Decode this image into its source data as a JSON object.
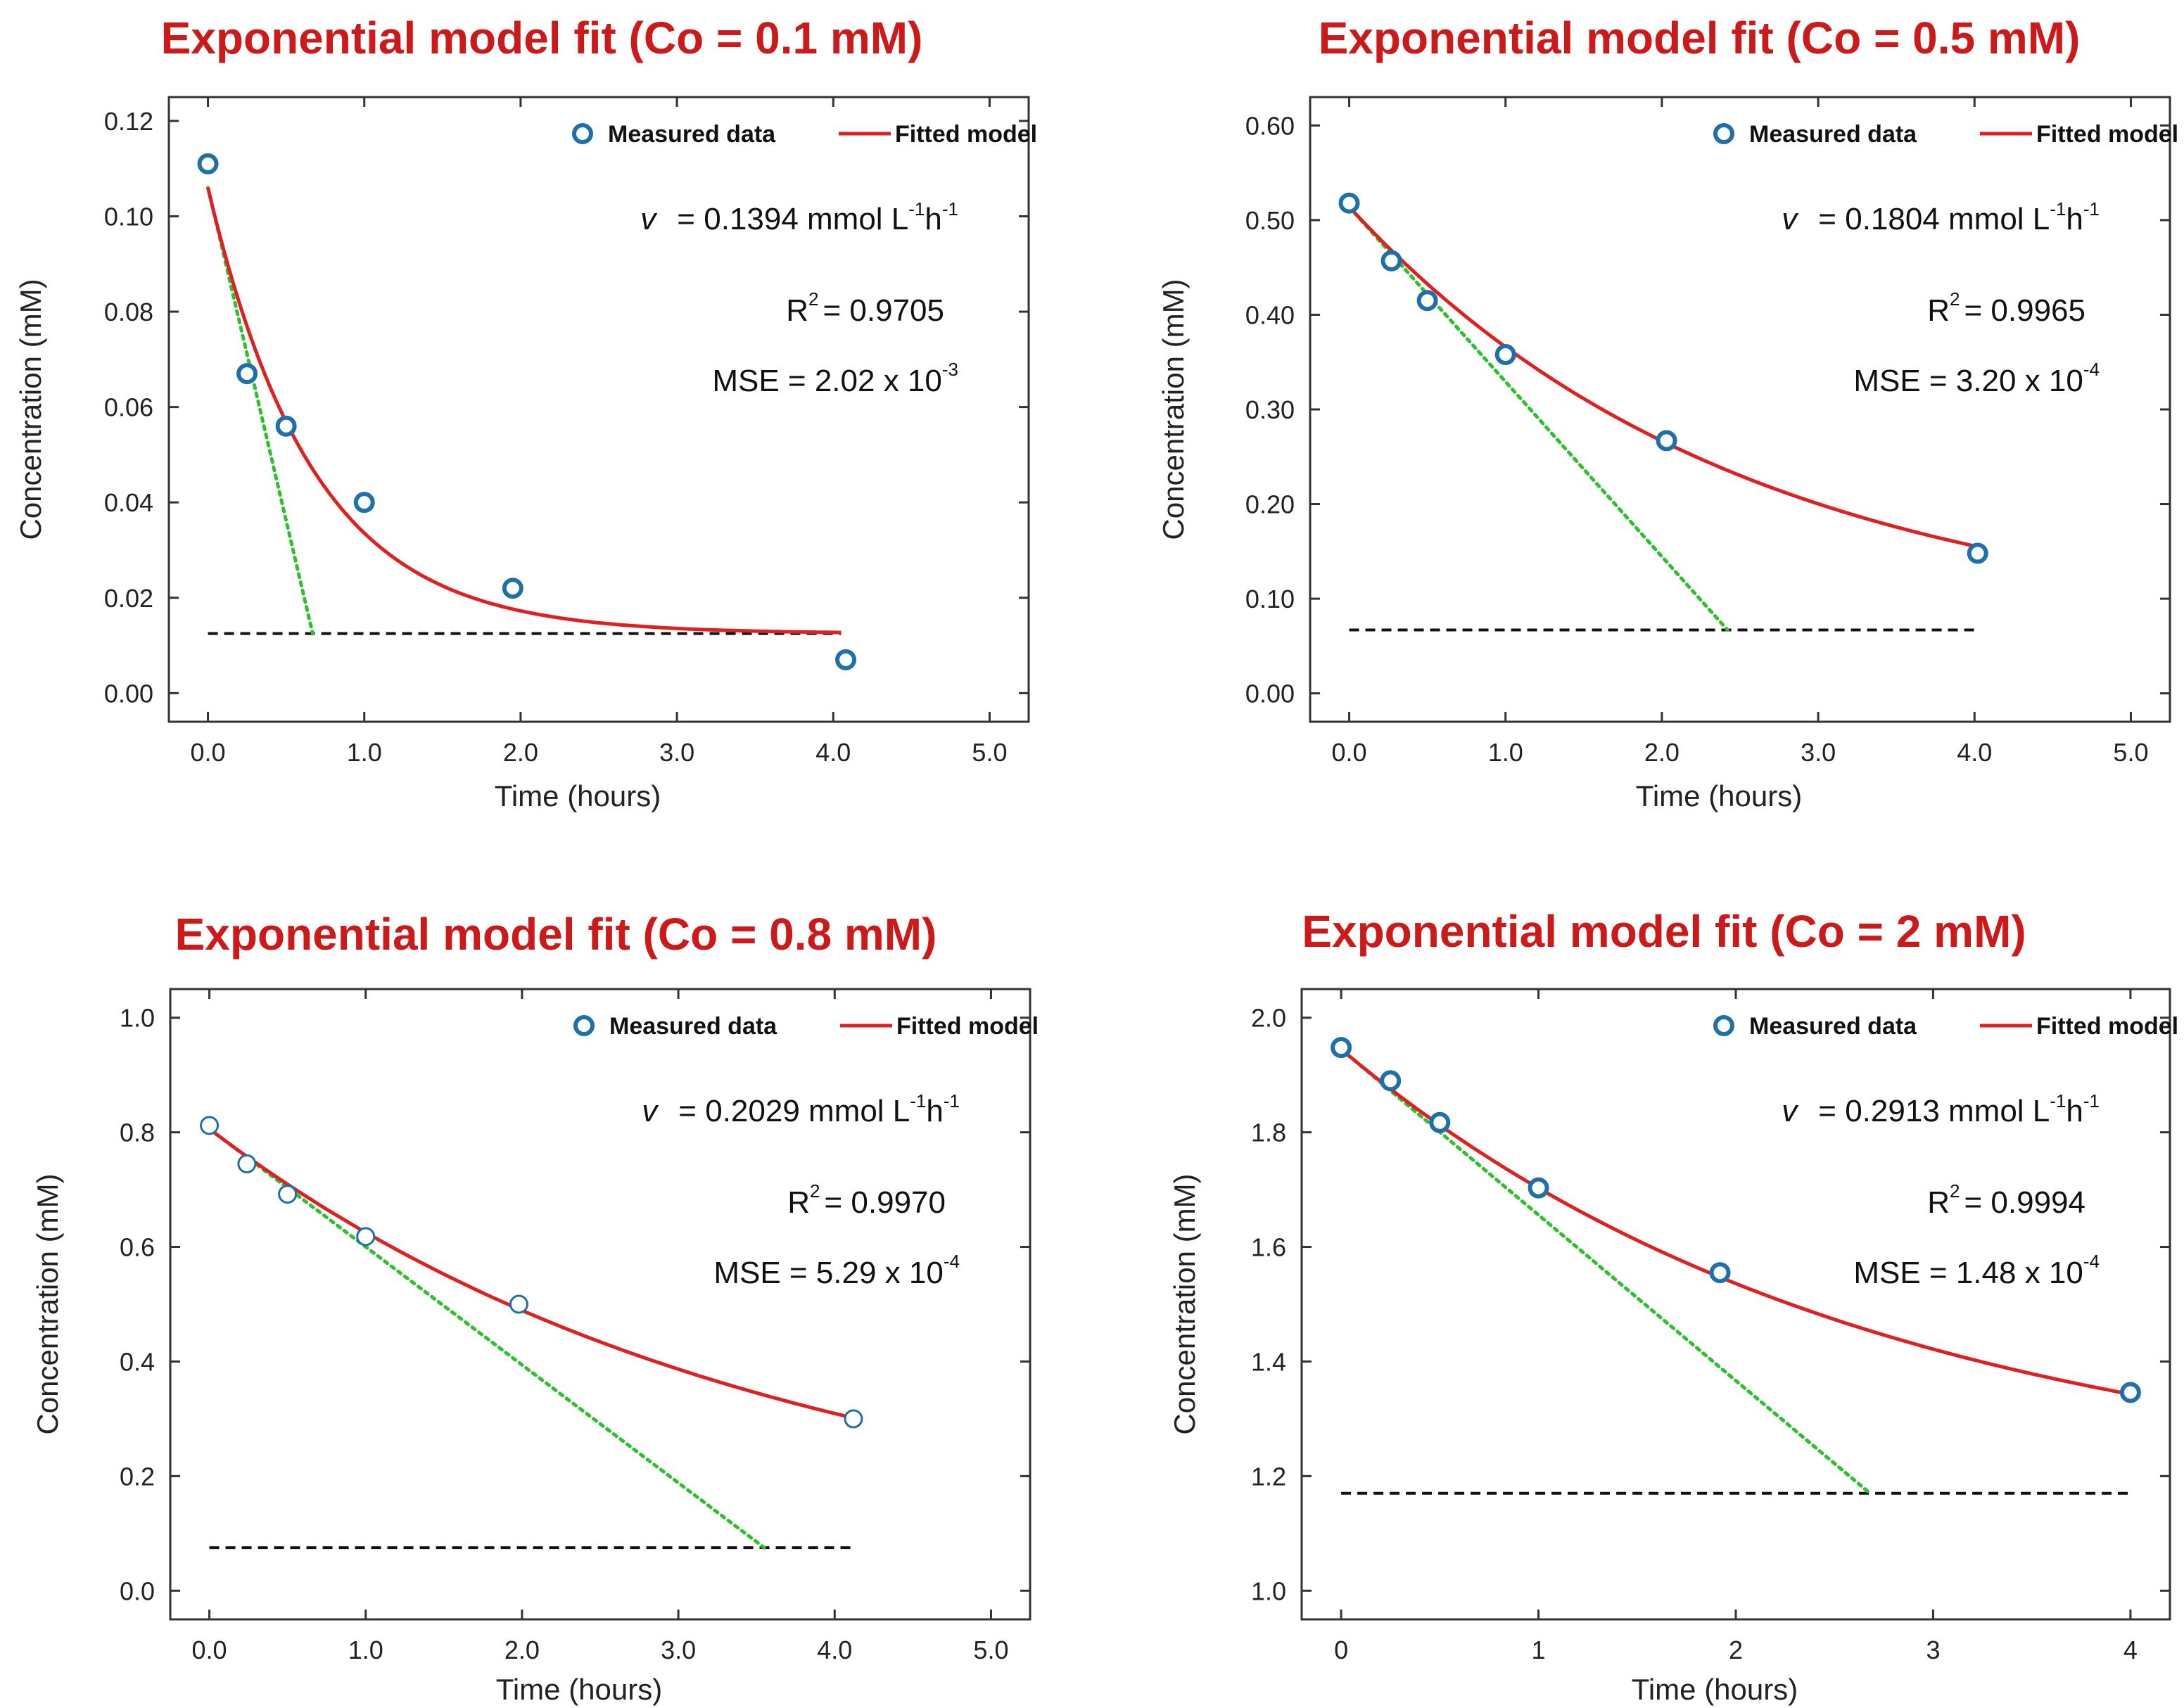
{
  "chart_data": [
    {
      "type": "scatter",
      "title": "Exponential model fit (Co = 0.1 mM)",
      "xlabel": "Time (hours)",
      "ylabel": "Concentration (mM)",
      "xlim": [
        -0.25,
        5.25
      ],
      "ylim": [
        -0.006,
        0.125
      ],
      "xticks": [
        0,
        1,
        2,
        3,
        4,
        5
      ],
      "xtick_labels": [
        "0.0",
        "1.0",
        "2.0",
        "3.0",
        "4.0",
        "5.0"
      ],
      "yticks": [
        0,
        0.02,
        0.04,
        0.06,
        0.08,
        0.1,
        0.12
      ],
      "ytick_labels": [
        "0.00",
        "0.02",
        "0.04",
        "0.06",
        "0.08",
        "0.10",
        "0.12"
      ],
      "legend": {
        "measured": "Measured data",
        "fitted": "Fitted model",
        "position": "top-right"
      },
      "measured": {
        "x": [
          0,
          0.25,
          0.5,
          1.0,
          1.95,
          4.08
        ],
        "y": [
          0.111,
          0.067,
          0.056,
          0.04,
          0.022,
          0.007
        ]
      },
      "fitted_model": {
        "a": 0.0125,
        "b": 0.0935,
        "k": 1.49,
        "x_end": 4.05
      },
      "tangent": {
        "x": [
          0,
          0.67
        ],
        "y": [
          0.106,
          0.0125
        ]
      },
      "asymptote": {
        "y": 0.0125,
        "x": [
          0,
          4.05
        ]
      },
      "annotations": {
        "v_symbol": "v",
        "v_text": "= 0.1394 mmol L",
        "v_sup1": "-1",
        "v_h": "h",
        "v_sup2": "-1",
        "r2_prefix": "R",
        "r2_sup": "2",
        "r2_value": "= 0.9705",
        "mse_text": "MSE = 2.02 x 10",
        "mse_sup": "-3"
      }
    },
    {
      "type": "scatter",
      "title": "Exponential model fit (Co = 0.5 mM)",
      "xlabel": "Time (hours)",
      "ylabel": "Concentration (mM)",
      "xlim": [
        -0.25,
        5.25
      ],
      "ylim": [
        -0.03,
        0.63
      ],
      "xticks": [
        0,
        1,
        2,
        3,
        4,
        5
      ],
      "xtick_labels": [
        "0.0",
        "1.0",
        "2.0",
        "3.0",
        "4.0",
        "5.0"
      ],
      "yticks": [
        0,
        0.1,
        0.2,
        0.3,
        0.4,
        0.5,
        0.6
      ],
      "ytick_labels": [
        "0.00",
        "0.10",
        "0.20",
        "0.30",
        "0.40",
        "0.50",
        "0.60"
      ],
      "legend": {
        "measured": "Measured data",
        "fitted": "Fitted model",
        "position": "top-right"
      },
      "measured": {
        "x": [
          0,
          0.27,
          0.5,
          1.0,
          2.03,
          4.02
        ],
        "y": [
          0.518,
          0.457,
          0.415,
          0.358,
          0.267,
          0.148
        ]
      },
      "fitted_model": {
        "a": 0.065,
        "b": 0.449,
        "k": 0.4,
        "x_end": 4.02
      },
      "tangent": {
        "x": [
          0,
          2.42
        ],
        "y": [
          0.514,
          0.067
        ]
      },
      "asymptote": {
        "y": 0.067,
        "x": [
          0,
          4.02
        ]
      },
      "annotations": {
        "v_symbol": "v",
        "v_text": "= 0.1804 mmol L",
        "v_sup1": "-1",
        "v_h": "h",
        "v_sup2": "-1",
        "r2_prefix": "R",
        "r2_sup": "2",
        "r2_value": "= 0.9965",
        "mse_text": "MSE = 3.20 x 10",
        "mse_sup": "-4"
      }
    },
    {
      "type": "scatter",
      "title": "Exponential model fit (Co = 0.8 mM)",
      "xlabel": "Time (hours)",
      "ylabel": "Concentration (mM)",
      "xlim": [
        -0.25,
        5.25
      ],
      "ylim": [
        -0.05,
        1.05
      ],
      "xticks": [
        0,
        1,
        2,
        3,
        4,
        5
      ],
      "xtick_labels": [
        "0.0",
        "1.0",
        "2.0",
        "3.0",
        "4.0",
        "5.0"
      ],
      "yticks": [
        0,
        0.2,
        0.4,
        0.6,
        0.8,
        1.0
      ],
      "ytick_labels": [
        "0.0",
        "0.2",
        "0.4",
        "0.6",
        "0.8",
        "1.0"
      ],
      "legend": {
        "measured": "Measured data",
        "fitted": "Fitted model",
        "position": "top-right"
      },
      "measured": {
        "x": [
          0,
          0.24,
          0.5,
          1.0,
          1.98,
          4.12
        ],
        "y": [
          0.812,
          0.745,
          0.692,
          0.618,
          0.5,
          0.3
        ]
      },
      "fitted_model": {
        "a": 0.073,
        "b": 0.733,
        "k": 0.283,
        "x_end": 4.12
      },
      "tangent": {
        "x": [
          0,
          3.55
        ],
        "y": [
          0.806,
          0.075
        ]
      },
      "asymptote": {
        "y": 0.075,
        "x": [
          0,
          4.12
        ]
      },
      "annotations": {
        "v_symbol": "v",
        "v_text": "= 0.2029 mmol L",
        "v_sup1": "-1",
        "v_h": "h",
        "v_sup2": "-1",
        "r2_prefix": "R",
        "r2_sup": "2",
        "r2_value": "= 0.9970",
        "mse_text": "MSE = 5.29 x 10",
        "mse_sup": "-4"
      }
    },
    {
      "type": "scatter",
      "title": "Exponential model fit (Co = 2 mM)",
      "xlabel": "Time (hours)",
      "ylabel": "Concentration (mM)",
      "xlim": [
        -0.2,
        4.2
      ],
      "ylim": [
        0.95,
        2.05
      ],
      "xticks": [
        0,
        1,
        2,
        3,
        4
      ],
      "xtick_labels": [
        "0",
        "1",
        "2",
        "3",
        "4"
      ],
      "yticks": [
        1.0,
        1.2,
        1.4,
        1.6,
        1.8,
        2.0
      ],
      "ytick_labels": [
        "1.0",
        "1.2",
        "1.4",
        "1.6",
        "1.8",
        "2.0"
      ],
      "legend": {
        "measured": "Measured data",
        "fitted": "Fitted model",
        "position": "top-right"
      },
      "measured": {
        "x": [
          0,
          0.25,
          0.5,
          1.0,
          1.92,
          4.0
        ],
        "y": [
          1.948,
          1.89,
          1.817,
          1.703,
          1.555,
          1.346
        ]
      },
      "fitted_model": {
        "a": 1.17,
        "b": 0.775,
        "k": 0.375,
        "x_end": 4.0
      },
      "tangent": {
        "x": [
          0,
          2.68
        ],
        "y": [
          1.945,
          1.17
        ]
      },
      "asymptote": {
        "y": 1.17,
        "x": [
          0,
          4.0
        ]
      },
      "annotations": {
        "v_symbol": "v",
        "v_text": "= 0.2913 mmol L",
        "v_sup1": "-1",
        "v_h": "h",
        "v_sup2": "-1",
        "r2_prefix": "R",
        "r2_sup": "2",
        "r2_value": "= 0.9994",
        "mse_text": "MSE = 1.48 x 10",
        "mse_sup": "-4"
      }
    }
  ],
  "colors": {
    "title": "#cc1a1a",
    "fitted": "#e02020",
    "marker": "#1f6fa8",
    "tangent": "#2ec02e",
    "asymptote": "#111111"
  }
}
